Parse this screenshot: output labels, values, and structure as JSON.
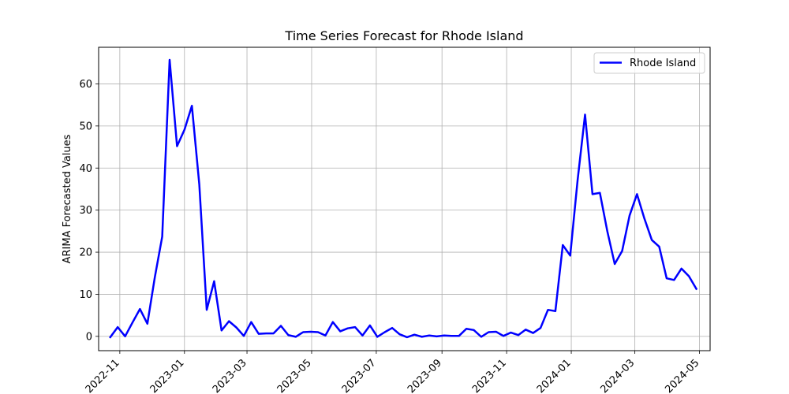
{
  "chart_data": {
    "type": "line",
    "title": "Time Series Forecast for Rhode Island",
    "xlabel": "",
    "ylabel": "ARIMA Forecasted Values",
    "xlim": [
      "2022-10-12",
      "2024-05-11"
    ],
    "ylim": [
      -3.4,
      68.7
    ],
    "x_ticks": [
      "2022-11-01",
      "2023-01-01",
      "2023-03-01",
      "2023-05-01",
      "2023-07-01",
      "2023-09-01",
      "2023-11-01",
      "2024-01-01",
      "2024-03-01",
      "2024-05-01"
    ],
    "x_tick_labels": [
      "2022-11",
      "2023-01",
      "2023-03",
      "2023-05",
      "2023-07",
      "2023-09",
      "2023-11",
      "2024-01",
      "2024-03",
      "2024-05"
    ],
    "y_ticks": [
      0,
      10,
      20,
      30,
      40,
      50,
      60
    ],
    "y_tick_labels": [
      "0",
      "10",
      "20",
      "30",
      "40",
      "50",
      "60"
    ],
    "grid": true,
    "legend_position": "top-right",
    "series": [
      {
        "name": "Rhode Island",
        "color": "#0000ff",
        "x": [
          "2022-10-23",
          "2022-10-30",
          "2022-11-06",
          "2022-11-13",
          "2022-11-20",
          "2022-11-27",
          "2022-12-04",
          "2022-12-11",
          "2022-12-18",
          "2022-12-25",
          "2023-01-01",
          "2023-01-08",
          "2023-01-15",
          "2023-01-22",
          "2023-01-29",
          "2023-02-05",
          "2023-02-12",
          "2023-02-19",
          "2023-02-26",
          "2023-03-05",
          "2023-03-12",
          "2023-03-19",
          "2023-03-26",
          "2023-04-02",
          "2023-04-09",
          "2023-04-16",
          "2023-04-23",
          "2023-04-30",
          "2023-05-07",
          "2023-05-14",
          "2023-05-21",
          "2023-05-28",
          "2023-06-04",
          "2023-06-11",
          "2023-06-18",
          "2023-06-25",
          "2023-07-02",
          "2023-07-09",
          "2023-07-16",
          "2023-07-23",
          "2023-07-30",
          "2023-08-06",
          "2023-08-13",
          "2023-08-20",
          "2023-08-27",
          "2023-09-03",
          "2023-09-10",
          "2023-09-17",
          "2023-09-24",
          "2023-10-01",
          "2023-10-08",
          "2023-10-15",
          "2023-10-22",
          "2023-10-29",
          "2023-11-05",
          "2023-11-12",
          "2023-11-19",
          "2023-11-26",
          "2023-12-03",
          "2023-12-10",
          "2023-12-17",
          "2023-12-24",
          "2023-12-31",
          "2024-01-07",
          "2024-01-14",
          "2024-01-21",
          "2024-01-28",
          "2024-02-04",
          "2024-02-11",
          "2024-02-18",
          "2024-02-25",
          "2024-03-03",
          "2024-03-10",
          "2024-03-17",
          "2024-03-24",
          "2024-03-31",
          "2024-04-07",
          "2024-04-14",
          "2024-04-21",
          "2024-04-28"
        ],
        "values": [
          -0.2,
          2.2,
          0.0,
          3.3,
          6.5,
          3.0,
          14.0,
          23.7,
          65.7,
          45.2,
          49.1,
          54.8,
          36.1,
          6.3,
          13.1,
          1.4,
          3.6,
          2.1,
          0.1,
          3.4,
          0.6,
          0.7,
          0.7,
          2.5,
          0.3,
          -0.1,
          1.0,
          1.1,
          1.0,
          0.2,
          3.4,
          1.2,
          1.9,
          2.2,
          0.2,
          2.6,
          -0.1,
          1.0,
          2.0,
          0.5,
          -0.2,
          0.4,
          -0.1,
          0.2,
          0.0,
          0.2,
          0.1,
          0.1,
          1.8,
          1.5,
          -0.1,
          1.0,
          1.1,
          0.1,
          0.9,
          0.3,
          1.6,
          0.8,
          2.0,
          6.3,
          6.0,
          21.7,
          19.2,
          37.2,
          52.7,
          33.8,
          34.1,
          25.0,
          17.2,
          20.3,
          28.7,
          33.8,
          28.0,
          22.9,
          21.3,
          13.8,
          13.4,
          16.1,
          14.3,
          11.3
        ]
      }
    ]
  }
}
